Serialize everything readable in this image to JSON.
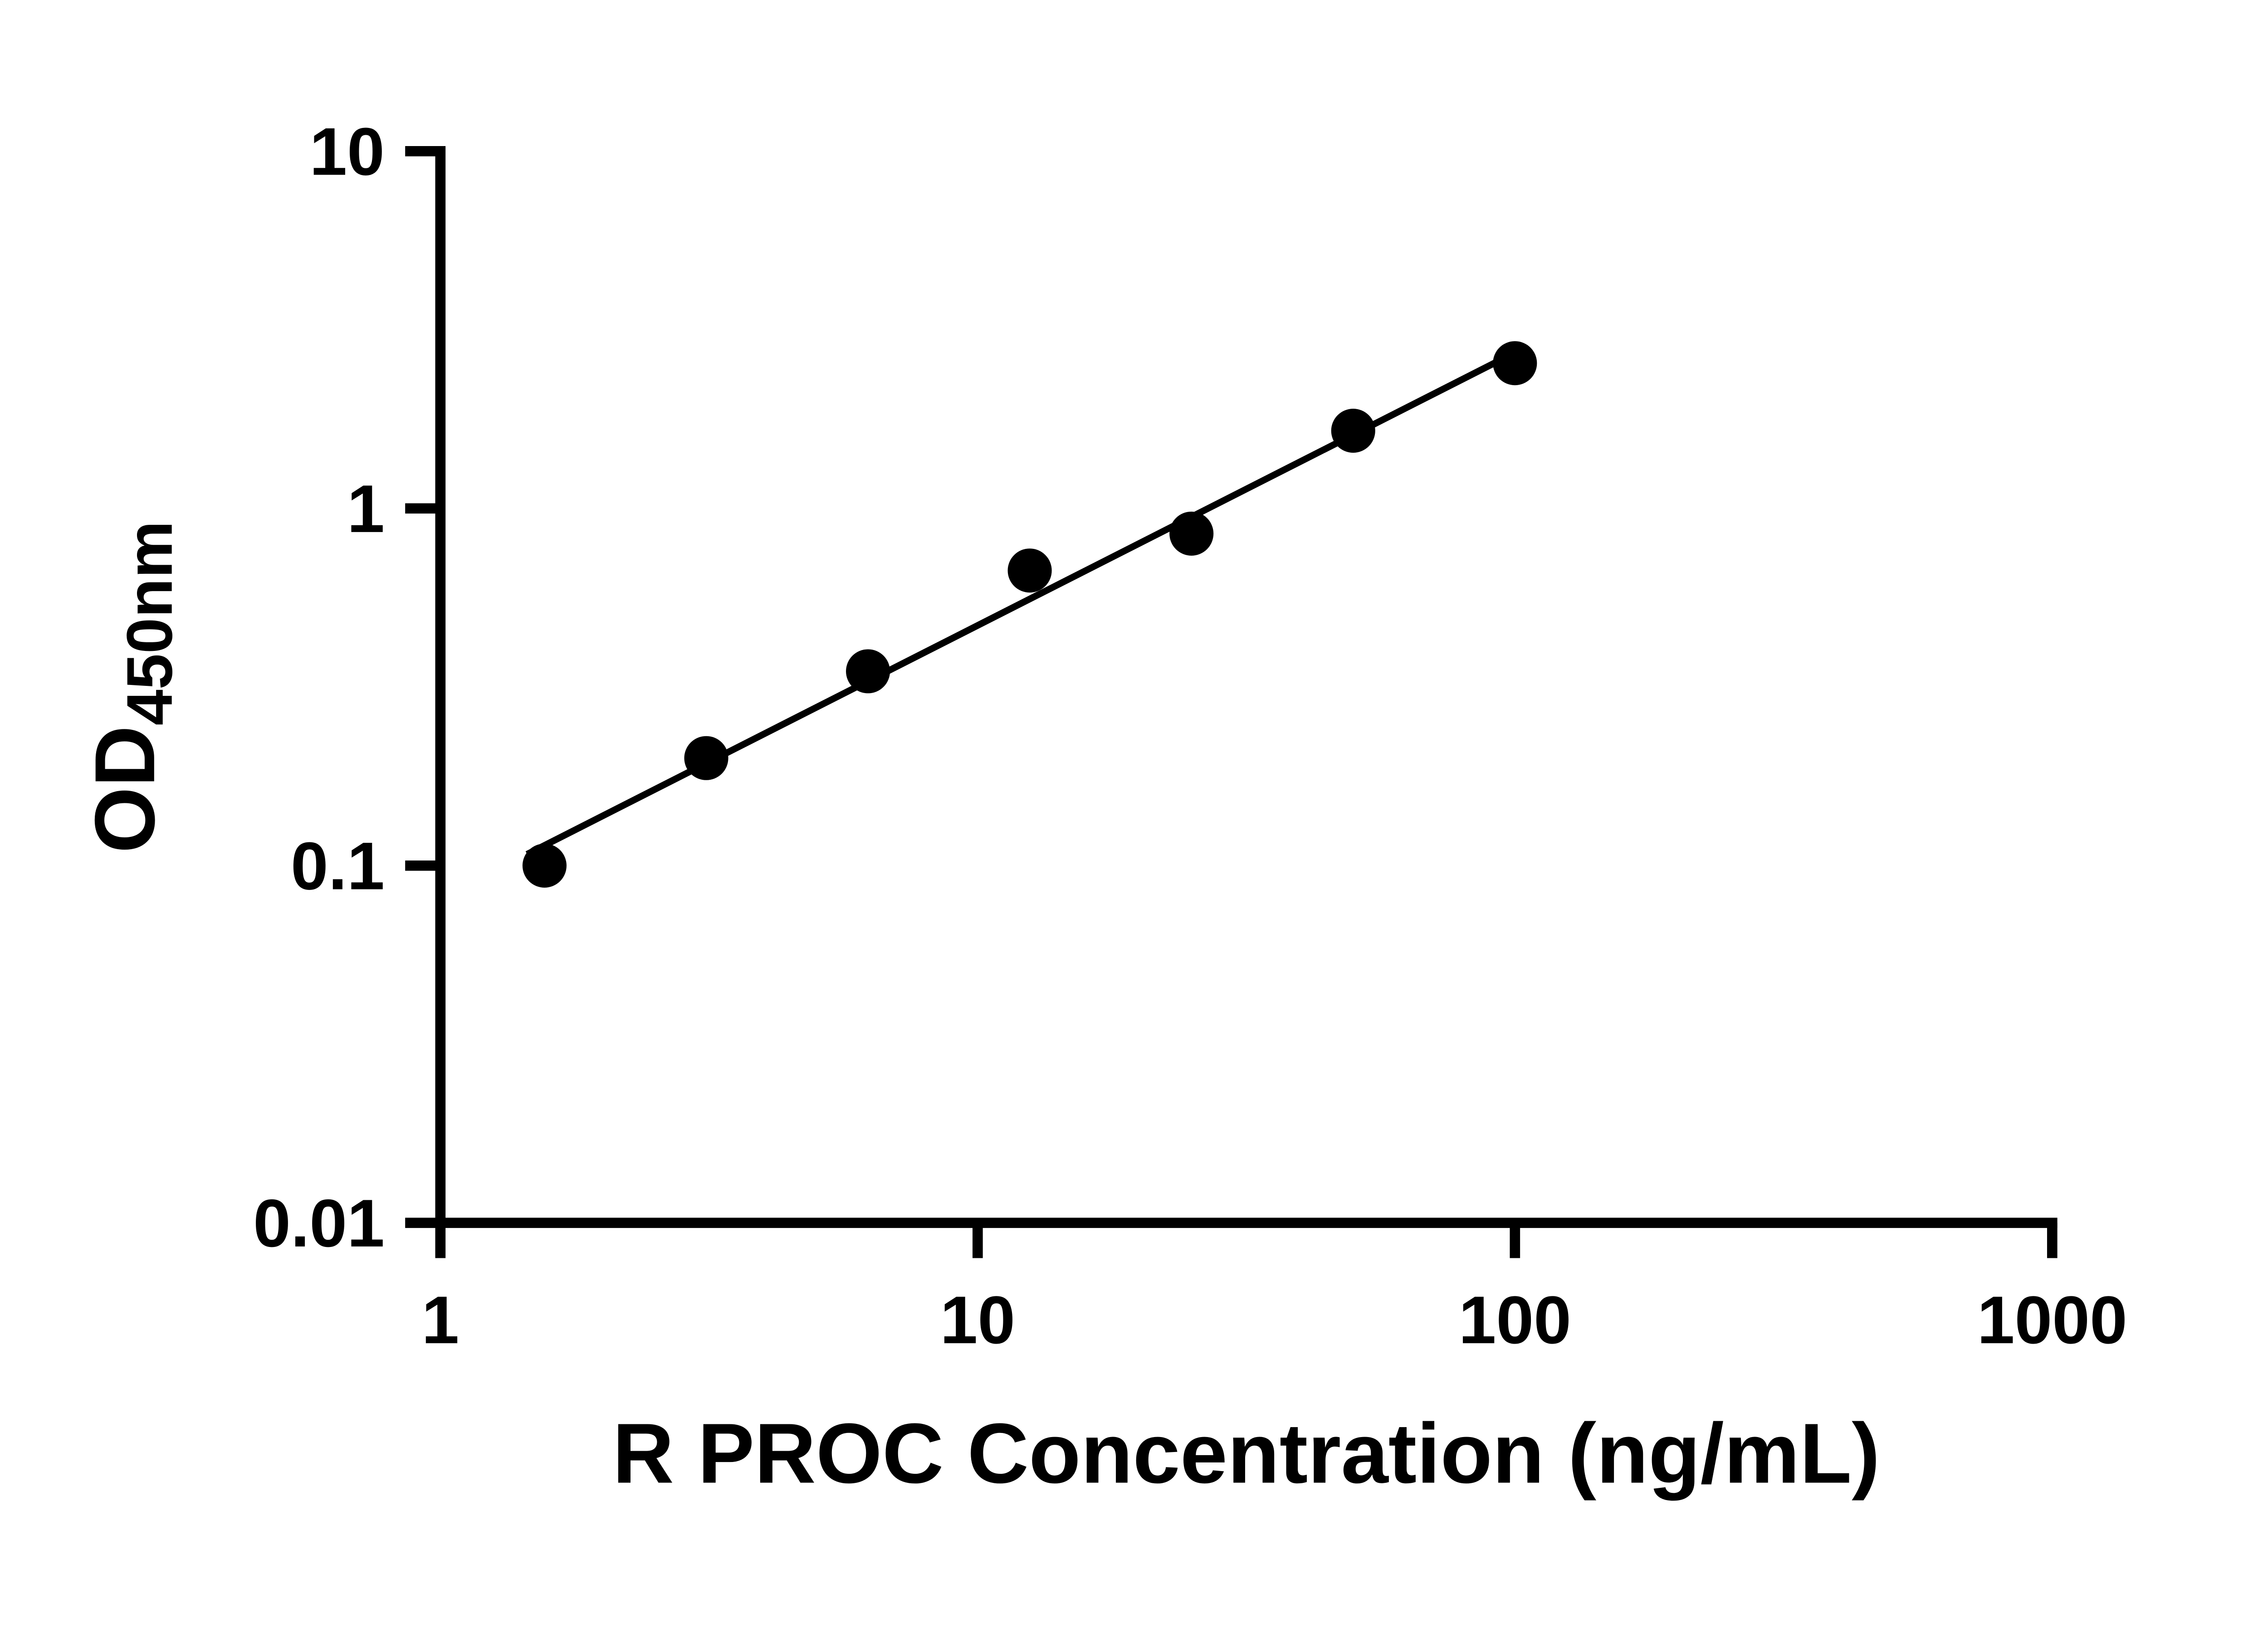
{
  "chart_data": {
    "type": "scatter",
    "title": "",
    "xlabel": "R PROC Concentration (ng/mL)",
    "ylabel_main": "OD",
    "ylabel_sub": "450nm",
    "x_scale": "log",
    "y_scale": "log",
    "xlim": [
      1,
      1000
    ],
    "ylim": [
      0.01,
      10
    ],
    "grid": false,
    "legend": false,
    "x": [
      1.5625,
      3.125,
      6.25,
      12.5,
      25,
      50,
      100
    ],
    "y": [
      0.1,
      0.2,
      0.35,
      0.67,
      0.85,
      1.65,
      2.55
    ],
    "x_ticks": [
      {
        "value": 1,
        "label": "1"
      },
      {
        "value": 10,
        "label": "10"
      },
      {
        "value": 100,
        "label": "100"
      },
      {
        "value": 1000,
        "label": "1000"
      }
    ],
    "y_ticks": [
      {
        "value": 0.01,
        "label": "0.01"
      },
      {
        "value": 0.1,
        "label": "0.1"
      },
      {
        "value": 1,
        "label": "1"
      },
      {
        "value": 10,
        "label": "10"
      }
    ],
    "trendline": {
      "type": "log-log linear fit",
      "x_start": 1.45,
      "x_end": 105
    },
    "marker_color": "#000000",
    "line_color": "#000000",
    "background_color": "#ffffff"
  }
}
